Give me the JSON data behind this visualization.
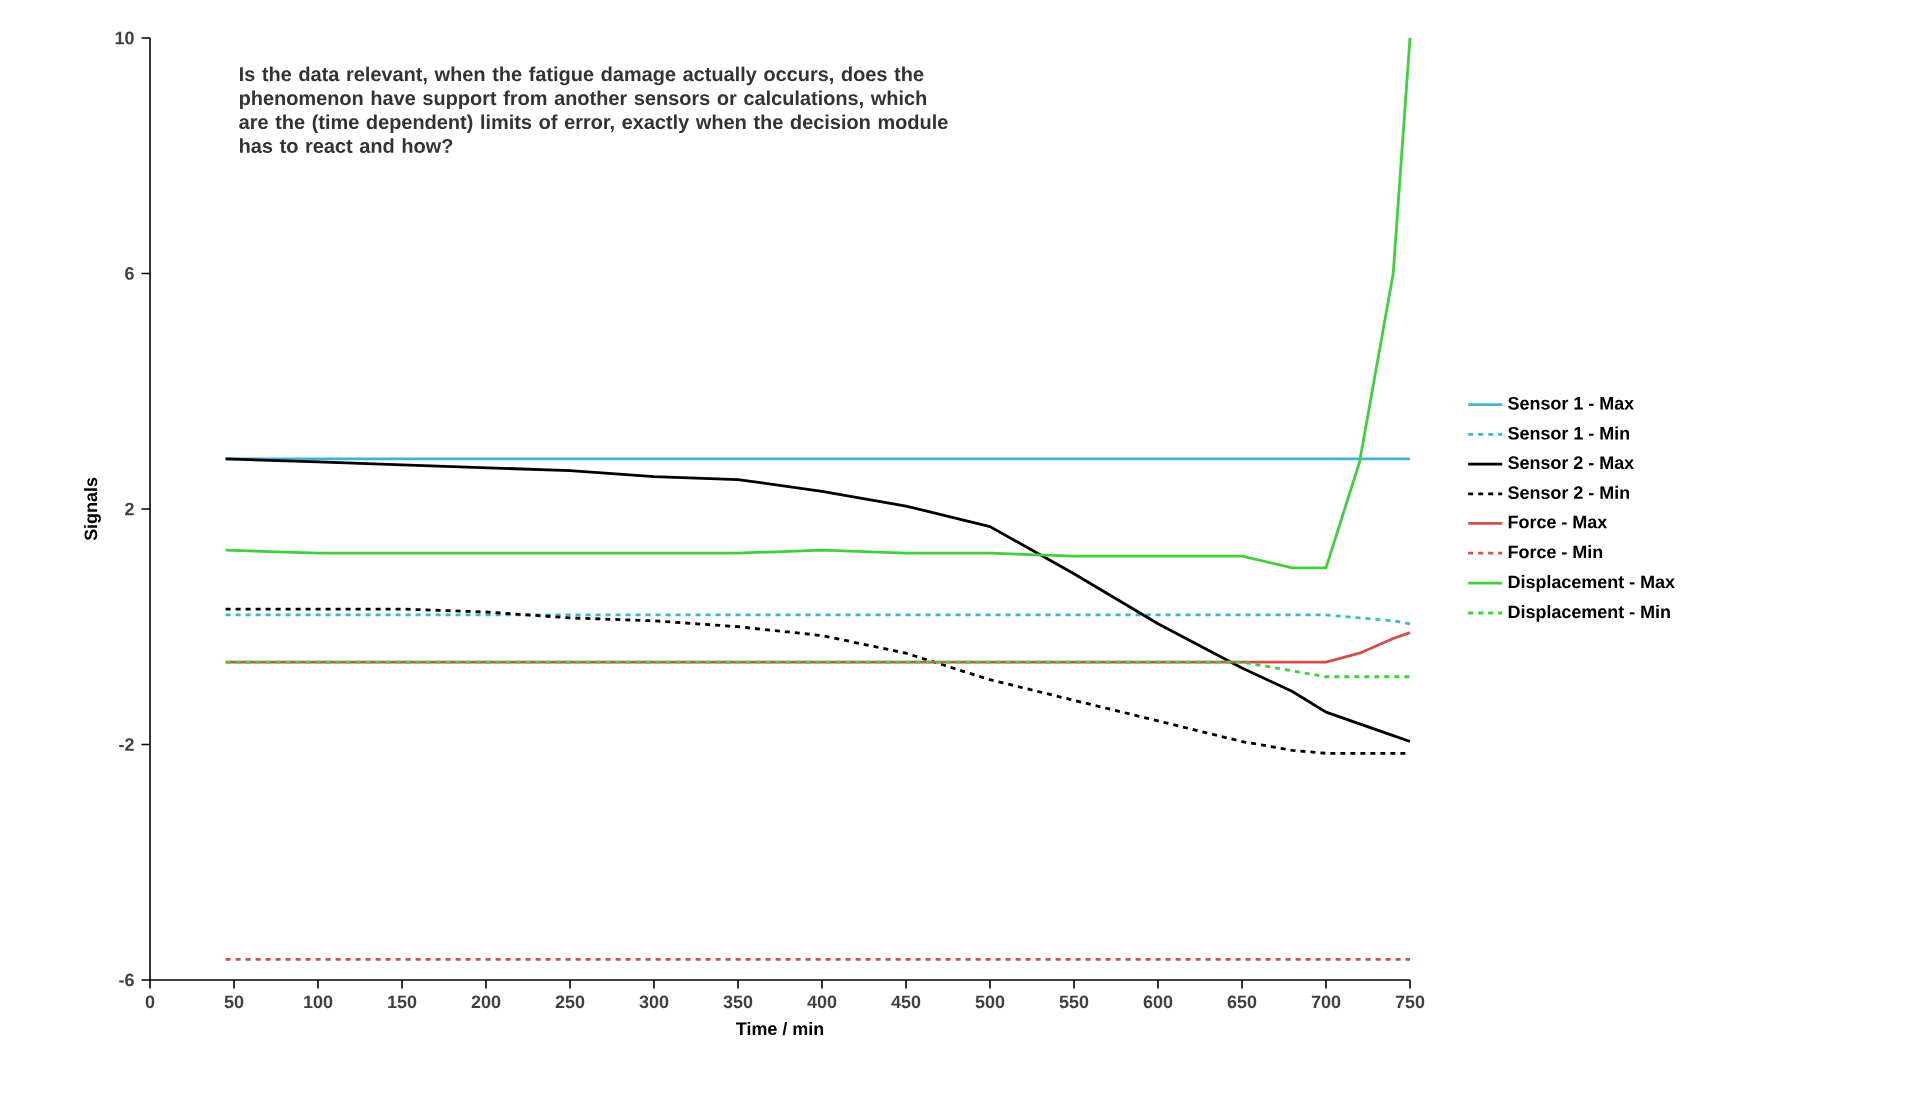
{
  "chart_data": {
    "type": "line",
    "xlabel": "Time / min",
    "ylabel": "Signals",
    "annotations": [
      "Is the data relevant, when the fatigue damage actually occurs, does the phenomenon have support from another sensors or calculations, which are the (time dependent) limits of error, exactly when the decision module has to react and how?"
    ],
    "x": [
      45,
      100,
      150,
      200,
      250,
      300,
      350,
      400,
      450,
      500,
      550,
      600,
      650,
      680,
      700,
      720,
      740,
      750
    ],
    "xlim": [
      0,
      750
    ],
    "xticks": [
      0,
      50,
      100,
      150,
      200,
      250,
      300,
      350,
      400,
      450,
      500,
      550,
      600,
      650,
      700,
      750
    ],
    "ylim": [
      -6,
      10
    ],
    "yticks": [
      -6,
      -2,
      2,
      6,
      10
    ],
    "grid": false,
    "legend": "right",
    "marker": "none",
    "series": [
      {
        "name": "Sensor 1 - Max",
        "color": "#3fb4d4",
        "line_style": "solid",
        "values": [
          2.85,
          2.85,
          2.85,
          2.85,
          2.85,
          2.85,
          2.85,
          2.85,
          2.85,
          2.85,
          2.85,
          2.85,
          2.85,
          2.85,
          2.85,
          2.85,
          2.85,
          2.85
        ]
      },
      {
        "name": "Sensor 1 - Min",
        "color": "#3fb4d4",
        "line_style": "dotted",
        "values": [
          0.2,
          0.2,
          0.2,
          0.2,
          0.2,
          0.2,
          0.2,
          0.2,
          0.2,
          0.2,
          0.2,
          0.2,
          0.2,
          0.2,
          0.2,
          0.15,
          0.1,
          0.05
        ]
      },
      {
        "name": "Sensor 2 - Max",
        "color": "#000000",
        "line_style": "solid",
        "values": [
          2.85,
          2.8,
          2.75,
          2.7,
          2.65,
          2.55,
          2.5,
          2.3,
          2.05,
          1.7,
          0.9,
          0.05,
          -0.7,
          -1.1,
          -1.45,
          -1.65,
          -1.85,
          -1.95
        ]
      },
      {
        "name": "Sensor 2 - Min",
        "color": "#000000",
        "line_style": "dotted",
        "values": [
          0.3,
          0.3,
          0.3,
          0.25,
          0.15,
          0.1,
          0,
          -0.15,
          -0.45,
          -0.9,
          -1.25,
          -1.6,
          -1.95,
          -2.1,
          -2.15,
          -2.15,
          -2.15,
          -2.15
        ]
      },
      {
        "name": "Force - Max",
        "color": "#d0504a",
        "line_style": "solid",
        "values": [
          -0.6,
          -0.6,
          -0.6,
          -0.6,
          -0.6,
          -0.6,
          -0.6,
          -0.6,
          -0.6,
          -0.6,
          -0.6,
          -0.6,
          -0.6,
          -0.6,
          -0.6,
          -0.45,
          -0.2,
          -0.1
        ]
      },
      {
        "name": "Force - Min",
        "color": "#d0504a",
        "line_style": "dotted",
        "values": [
          -5.65,
          -5.65,
          -5.65,
          -5.65,
          -5.65,
          -5.65,
          -5.65,
          -5.65,
          -5.65,
          -5.65,
          -5.65,
          -5.65,
          -5.65,
          -5.65,
          -5.65,
          -5.65,
          -5.65,
          -5.65
        ]
      },
      {
        "name": "Displacement - Max",
        "color": "#3fcf3f",
        "line_style": "solid",
        "values": [
          1.3,
          1.25,
          1.25,
          1.25,
          1.25,
          1.25,
          1.25,
          1.3,
          1.25,
          1.25,
          1.2,
          1.2,
          1.2,
          1.0,
          1.0,
          2.8,
          6,
          10
        ]
      },
      {
        "name": "Displacement - Min",
        "color": "#3fcf3f",
        "line_style": "dotted",
        "values": [
          -0.6,
          -0.6,
          -0.6,
          -0.6,
          -0.6,
          -0.6,
          -0.6,
          -0.6,
          -0.6,
          -0.6,
          -0.6,
          -0.6,
          -0.6,
          -0.75,
          -0.85,
          -0.85,
          -0.85,
          -0.85
        ]
      }
    ]
  }
}
